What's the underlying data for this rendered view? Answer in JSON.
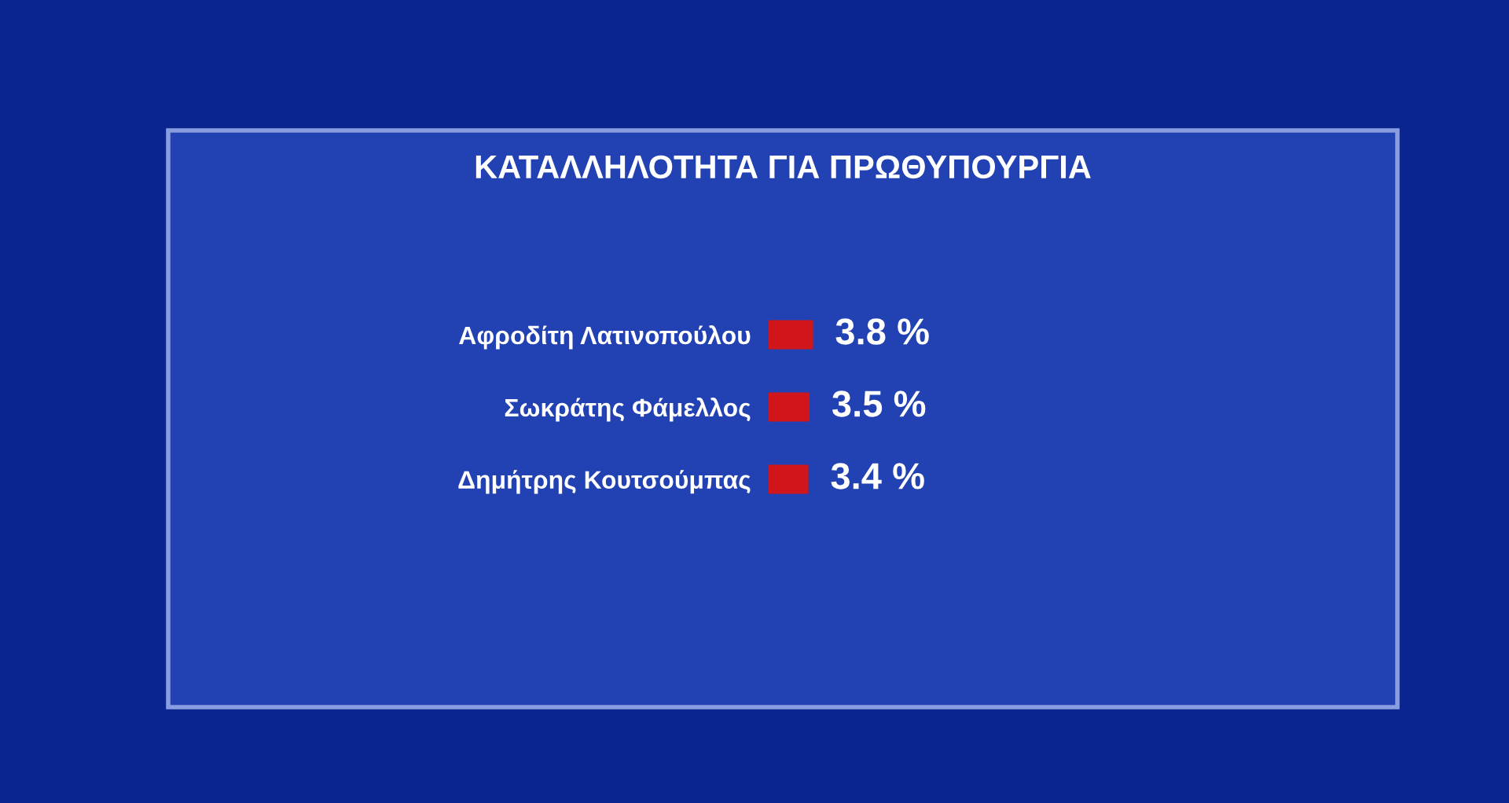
{
  "chart_data": {
    "type": "bar",
    "orientation": "horizontal",
    "title": "ΚΑΤΑΛΛΗΛΟΤΗΤΑ ΓΙΑ ΠΡΩΘΥΠΟΥΡΓΙΑ",
    "categories": [
      "Αφροδίτη Λατινοπούλου",
      "Σωκράτης Φάμελλος",
      "Δημήτρης Κουτσούμπας"
    ],
    "values": [
      3.8,
      3.5,
      3.4
    ],
    "value_labels": [
      "3.8 %",
      "3.5 %",
      "3.4 %"
    ],
    "color": "#d0161b"
  }
}
